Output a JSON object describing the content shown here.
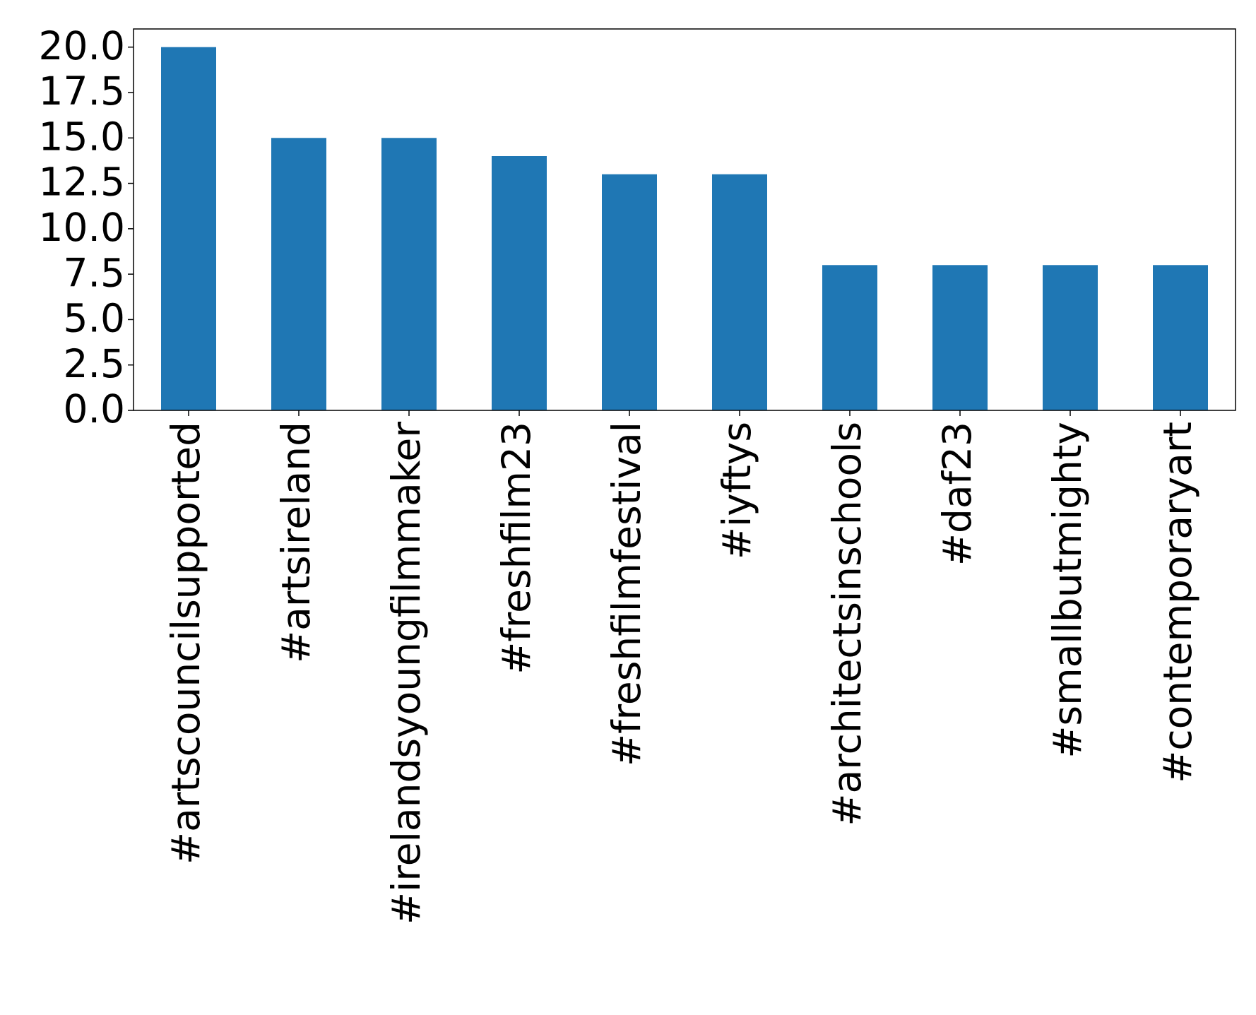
{
  "chart_data": {
    "type": "bar",
    "categories": [
      "#artscouncilsupported",
      "#artsireland",
      "#irelandsyoungfilmmaker",
      "#freshfilm23",
      "#freshfilmfestival",
      "#iyftys",
      "#architectsinschools",
      "#daf23",
      "#smallbutmighty",
      "#contemporaryart"
    ],
    "values": [
      20,
      15,
      15,
      14,
      13,
      13,
      8,
      8,
      8,
      8
    ],
    "color": "#1f77b4",
    "ylim": [
      0,
      21
    ],
    "yticks": [
      {
        "value": 0,
        "label": "0.0"
      },
      2.5,
      {
        "value": 5,
        "label": "5.0"
      },
      7.5,
      {
        "value": 10,
        "label": "10.0"
      },
      12.5,
      {
        "value": 15,
        "label": "15.0"
      },
      17.5,
      {
        "value": 20,
        "label": "20.0"
      }
    ],
    "grid": false
  }
}
